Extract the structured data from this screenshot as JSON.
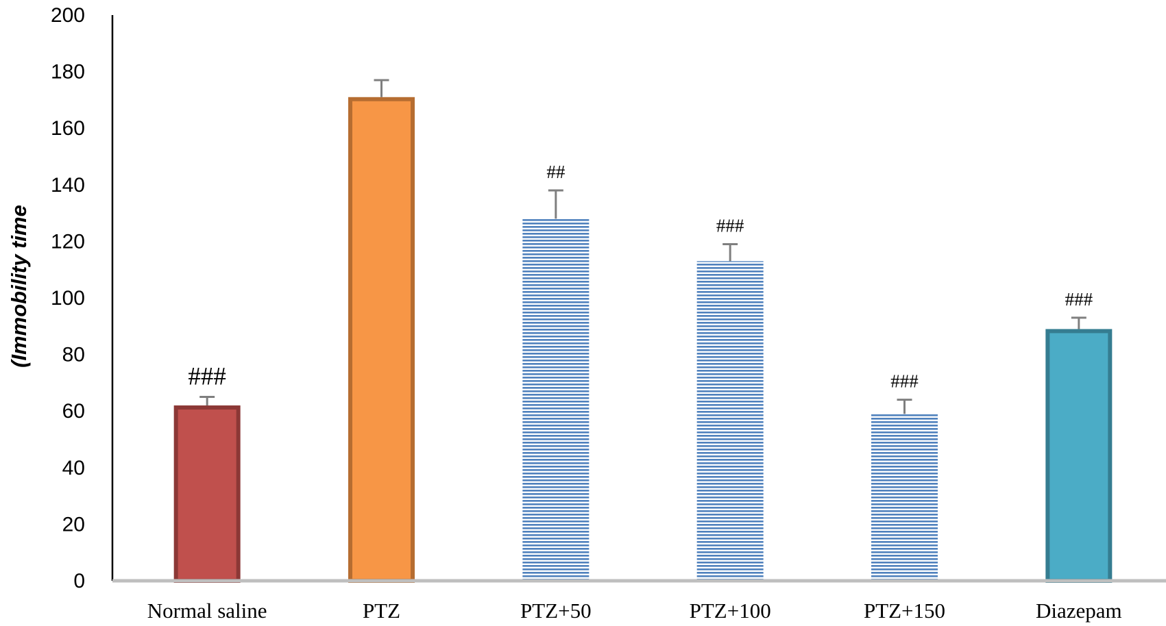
{
  "chart_data": {
    "type": "bar",
    "title": "",
    "xlabel": "",
    "ylabel": "(Immobility time",
    "ylim": [
      0,
      200
    ],
    "yticks": [
      0,
      20,
      40,
      60,
      80,
      100,
      120,
      140,
      160,
      180,
      200
    ],
    "grid": false,
    "categories": [
      "Normal saline",
      "PTZ",
      "PTZ+50",
      "PTZ+100",
      "PTZ+150",
      "Diazepam"
    ],
    "values": [
      62,
      171,
      128,
      113,
      59,
      89
    ],
    "errors": [
      3,
      6,
      10,
      6,
      5,
      4
    ],
    "annotations": [
      "###",
      "",
      "##",
      "###",
      "###",
      "###"
    ],
    "bar_styles": [
      {
        "fill": "#c0504d",
        "stroke": "#8c3836",
        "pattern": "solid"
      },
      {
        "fill": "#f79646",
        "stroke": "#b66d31",
        "pattern": "solid"
      },
      {
        "fill": "#4f81bd",
        "stroke": "#4f81bd",
        "pattern": "horizontal-lines"
      },
      {
        "fill": "#4f81bd",
        "stroke": "#4f81bd",
        "pattern": "horizontal-lines"
      },
      {
        "fill": "#4f81bd",
        "stroke": "#4f81bd",
        "pattern": "horizontal-lines"
      },
      {
        "fill": "#4bacc6",
        "stroke": "#357d91",
        "pattern": "solid"
      }
    ],
    "axis_color": "#000000",
    "baseline_color": "#bfbfbf",
    "error_bar_color": "#7f7f7f"
  }
}
